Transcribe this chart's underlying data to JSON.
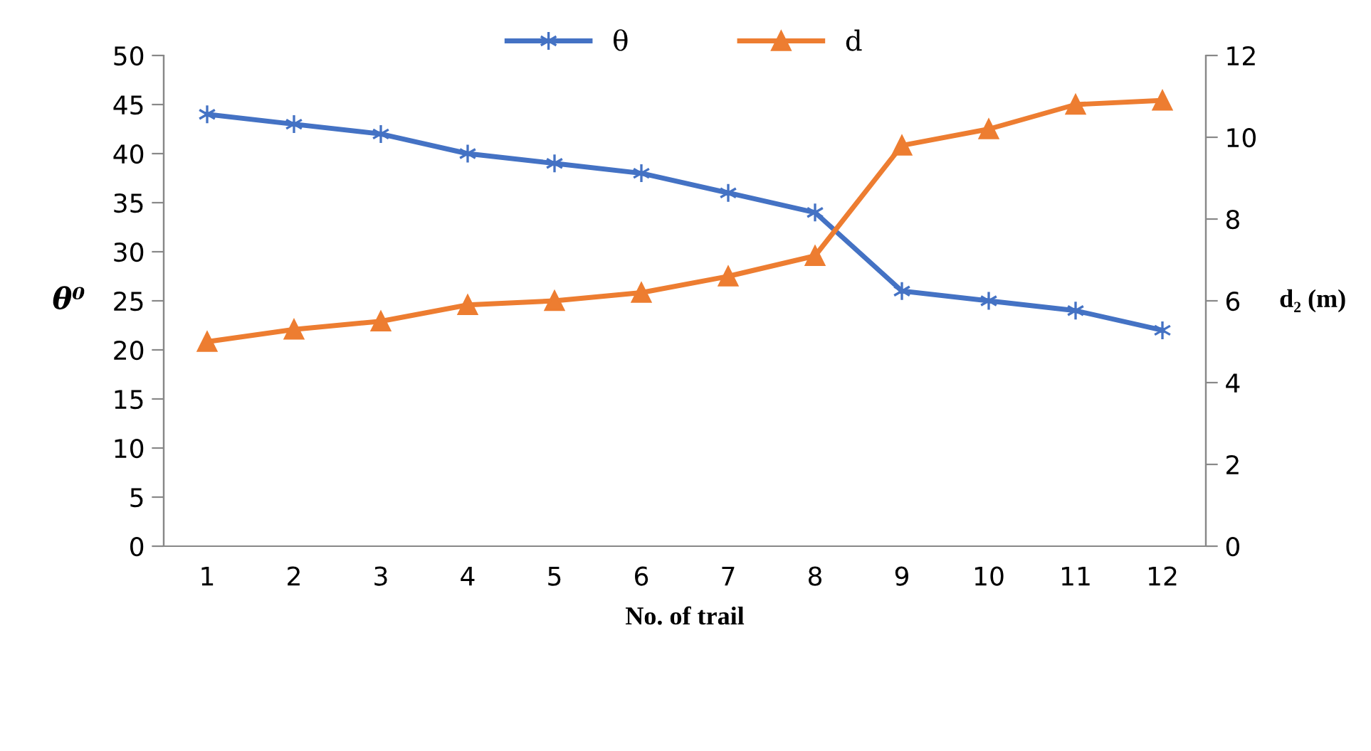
{
  "chart_data": {
    "type": "line",
    "xlabel": "No. of trail",
    "ylabel": "θ⁰",
    "y2label": "d₂ (m)",
    "categories": [
      "1",
      "2",
      "3",
      "4",
      "5",
      "6",
      "7",
      "8",
      "9",
      "10",
      "11",
      "12"
    ],
    "series": [
      {
        "name": "θ",
        "color": "#4472c4",
        "marker": "cross",
        "values": [
          44,
          43,
          42,
          40,
          39,
          38,
          36,
          34,
          26,
          25,
          24,
          22
        ]
      },
      {
        "name": "d",
        "color": "#ed7d31",
        "marker": "triangle",
        "axis": "y2",
        "values": [
          5.0,
          5.3,
          5.5,
          5.9,
          6.0,
          6.2,
          6.6,
          7.1,
          9.8,
          10.2,
          10.8,
          10.9
        ]
      }
    ],
    "ylim": [
      0,
      50
    ],
    "yticks": [
      0,
      5,
      10,
      15,
      20,
      25,
      30,
      35,
      40,
      45,
      50
    ],
    "y2lim": [
      0,
      12
    ],
    "y2ticks": [
      0,
      2,
      4,
      6,
      8,
      10,
      12
    ],
    "grid": false,
    "legend": "top"
  }
}
